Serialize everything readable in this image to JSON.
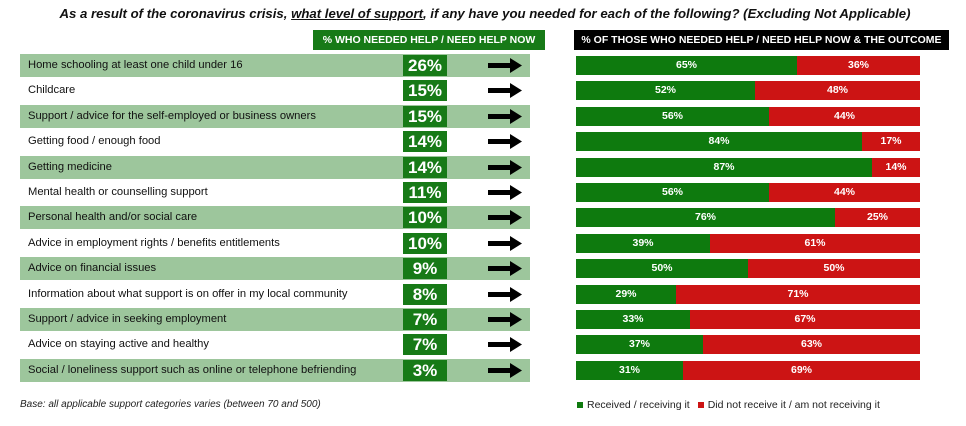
{
  "title": {
    "before": "As a result of the coronavirus crisis, ",
    "emph": "what level of support",
    "after": ", if any have you needed for each of the following? (Excluding Not Applicable)"
  },
  "header_left": "% WHO NEEDED HELP / NEED HELP NOW",
  "header_right": "% OF THOSE WHO NEEDED HELP / NEED HELP NOW & THE OUTCOME",
  "footnote": "Base: all applicable support categories varies (between 70 and 500)",
  "colors": {
    "green_band": "#9dc69c",
    "needed_box": "#177a17",
    "received": "#0e7a0e",
    "not_received": "#cc1414"
  },
  "chart_data": {
    "type": "bar",
    "orientation": "horizontal",
    "stacked": true,
    "categories": [
      "Home schooling at least one child under 16",
      "Childcare",
      "Support / advice for the self-employed or business owners",
      "Getting food / enough food",
      "Getting medicine",
      "Mental health or counselling support",
      "Personal health and/or social care",
      "Advice in employment rights / benefits entitlements",
      "Advice on financial issues",
      "Information about what support is on offer in my local community",
      "Support / advice in seeking employment",
      "Advice on staying active and healthy",
      "Social / loneliness support such as online or telephone befriending"
    ],
    "needed": [
      "26%",
      "15%",
      "15%",
      "14%",
      "14%",
      "11%",
      "10%",
      "10%",
      "9%",
      "8%",
      "7%",
      "7%",
      "3%"
    ],
    "series": [
      {
        "name": "Received / receiving it",
        "color": "#0e7a0e",
        "values": [
          65,
          52,
          56,
          84,
          87,
          56,
          76,
          39,
          50,
          29,
          33,
          37,
          31
        ]
      },
      {
        "name": "Did not receive it / am not receiving it",
        "color": "#cc1414",
        "values": [
          36,
          48,
          44,
          17,
          14,
          44,
          25,
          61,
          50,
          71,
          67,
          63,
          69
        ]
      }
    ],
    "legend_position": "bottom-right"
  }
}
